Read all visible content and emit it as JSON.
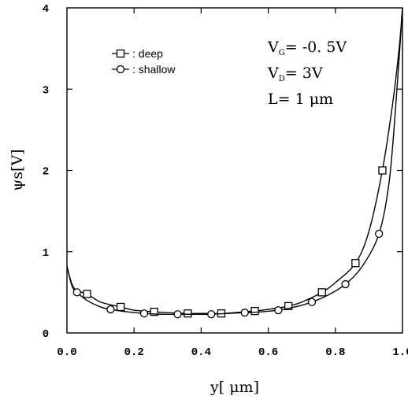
{
  "chart_data": {
    "type": "line",
    "title": "",
    "xlabel": "y[ μm]",
    "ylabel": "ψs[V]",
    "xlim": [
      0.0,
      1.0
    ],
    "ylim": [
      0,
      4
    ],
    "x_ticks": [
      "0.0",
      "0.2",
      "0.4",
      "0.6",
      "0.8",
      "1.0"
    ],
    "y_ticks": [
      "0",
      "1",
      "2",
      "3",
      "4"
    ],
    "grid": false,
    "legend_position": "top-left",
    "series": [
      {
        "name": "deep",
        "marker": "square",
        "x": [
          0.0,
          0.015,
          0.03,
          0.06,
          0.1,
          0.16,
          0.2,
          0.26,
          0.3,
          0.36,
          0.4,
          0.46,
          0.5,
          0.56,
          0.6,
          0.66,
          0.7,
          0.76,
          0.8,
          0.86,
          0.9,
          0.94,
          0.97,
          0.99,
          1.0
        ],
        "y": [
          0.82,
          0.6,
          0.52,
          0.48,
          0.38,
          0.32,
          0.28,
          0.26,
          0.25,
          0.24,
          0.24,
          0.24,
          0.25,
          0.27,
          0.29,
          0.33,
          0.38,
          0.5,
          0.62,
          0.86,
          1.25,
          2.0,
          2.8,
          3.5,
          4.0
        ],
        "marker_x": [
          0.06,
          0.16,
          0.26,
          0.36,
          0.46,
          0.56,
          0.66,
          0.76,
          0.86,
          0.94
        ],
        "marker_y": [
          0.48,
          0.32,
          0.26,
          0.24,
          0.24,
          0.27,
          0.33,
          0.5,
          0.86,
          2.0
        ]
      },
      {
        "name": "shallow",
        "marker": "circle",
        "x": [
          0.0,
          0.015,
          0.03,
          0.06,
          0.1,
          0.13,
          0.18,
          0.23,
          0.28,
          0.33,
          0.38,
          0.43,
          0.48,
          0.53,
          0.58,
          0.63,
          0.68,
          0.73,
          0.78,
          0.83,
          0.88,
          0.93,
          0.96,
          0.98,
          1.0
        ],
        "y": [
          0.82,
          0.58,
          0.5,
          0.4,
          0.32,
          0.29,
          0.26,
          0.24,
          0.23,
          0.23,
          0.23,
          0.23,
          0.24,
          0.25,
          0.26,
          0.28,
          0.32,
          0.38,
          0.47,
          0.6,
          0.82,
          1.22,
          1.85,
          2.8,
          4.0
        ],
        "marker_x": [
          0.03,
          0.13,
          0.23,
          0.33,
          0.43,
          0.53,
          0.63,
          0.73,
          0.83,
          0.93
        ],
        "marker_y": [
          0.5,
          0.29,
          0.24,
          0.23,
          0.23,
          0.25,
          0.28,
          0.38,
          0.6,
          1.22
        ]
      }
    ],
    "annotations": {
      "vg_main": "V",
      "vg_sub": "G",
      "vg_value": "= -0. 5V",
      "vd_main": "V",
      "vd_sub": "D",
      "vd_value": "= 3V",
      "length": "L= 1 μm"
    }
  },
  "legend": {
    "deep_label": ": deep",
    "shallow_label": ": shallow"
  }
}
